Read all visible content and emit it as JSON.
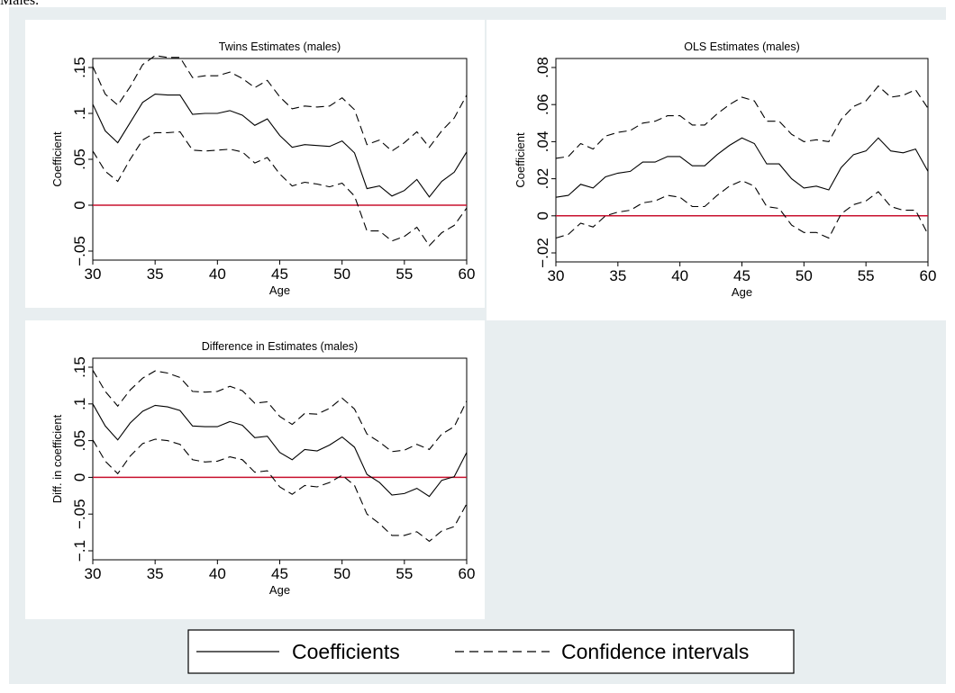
{
  "page": {
    "caption_fragment": "Males.",
    "background_color": "#e8eef0",
    "panel_color": "#ffffff"
  },
  "legend": {
    "solid_label": "Coefficients",
    "dashed_label": "Confidence intervals"
  },
  "chart_data": [
    {
      "type": "line",
      "title": "Twins Estimates (males)",
      "xlabel": "Age",
      "ylabel": "Coefficient",
      "xlim": [
        30,
        60
      ],
      "ylim": [
        -0.05,
        0.15
      ],
      "xticks": [
        30,
        35,
        40,
        45,
        50,
        55,
        60
      ],
      "xtick_labels": [
        "30",
        "35",
        "40",
        "45",
        "50",
        "55",
        "60"
      ],
      "yticks": [
        -0.05,
        0,
        0.05,
        0.1,
        0.15
      ],
      "ytick_labels": [
        "−.05",
        "0",
        ".05",
        ".1",
        ".15"
      ],
      "reference_line": {
        "y": 0,
        "color": "#c8102e"
      },
      "x": [
        30,
        31,
        32,
        33,
        34,
        35,
        36,
        37,
        38,
        39,
        40,
        41,
        42,
        43,
        44,
        45,
        46,
        47,
        48,
        49,
        50,
        51,
        52,
        53,
        54,
        55,
        56,
        57,
        58,
        59,
        60
      ],
      "series": [
        {
          "style": "solid",
          "values": [
            0.11,
            0.081,
            0.068,
            0.09,
            0.112,
            0.121,
            0.12,
            0.12,
            0.099,
            0.1,
            0.1,
            0.103,
            0.098,
            0.087,
            0.094,
            0.076,
            0.063,
            0.066,
            0.065,
            0.064,
            0.07,
            0.057,
            0.018,
            0.021,
            0.01,
            0.016,
            0.028,
            0.009,
            0.026,
            0.036,
            0.058
          ]
        },
        {
          "style": "dashed",
          "values": [
            0.151,
            0.121,
            0.109,
            0.129,
            0.153,
            0.163,
            0.161,
            0.161,
            0.139,
            0.141,
            0.141,
            0.145,
            0.138,
            0.128,
            0.136,
            0.118,
            0.105,
            0.108,
            0.107,
            0.108,
            0.117,
            0.104,
            0.066,
            0.071,
            0.059,
            0.068,
            0.08,
            0.063,
            0.081,
            0.095,
            0.12
          ]
        },
        {
          "style": "dashed",
          "values": [
            0.059,
            0.037,
            0.026,
            0.05,
            0.071,
            0.079,
            0.079,
            0.08,
            0.06,
            0.059,
            0.06,
            0.061,
            0.058,
            0.046,
            0.052,
            0.034,
            0.021,
            0.025,
            0.023,
            0.02,
            0.024,
            0.01,
            -0.028,
            -0.028,
            -0.039,
            -0.034,
            -0.024,
            -0.044,
            -0.03,
            -0.022,
            -0.003
          ]
        }
      ]
    },
    {
      "type": "line",
      "title": "OLS Estimates (males)",
      "xlabel": "Age",
      "ylabel": "Coefficient",
      "xlim": [
        30,
        60
      ],
      "ylim": [
        -0.02,
        0.08
      ],
      "xticks": [
        30,
        35,
        40,
        45,
        50,
        55,
        60
      ],
      "xtick_labels": [
        "30",
        "35",
        "40",
        "45",
        "50",
        "55",
        "60"
      ],
      "yticks": [
        -0.02,
        0,
        0.02,
        0.04,
        0.06,
        0.08
      ],
      "ytick_labels": [
        "−.02",
        "0",
        ".02",
        ".04",
        ".06",
        ".08"
      ],
      "reference_line": {
        "y": 0,
        "color": "#c8102e"
      },
      "x": [
        30,
        31,
        32,
        33,
        34,
        35,
        36,
        37,
        38,
        39,
        40,
        41,
        42,
        43,
        44,
        45,
        46,
        47,
        48,
        49,
        50,
        51,
        52,
        53,
        54,
        55,
        56,
        57,
        58,
        59,
        60
      ],
      "series": [
        {
          "style": "solid",
          "values": [
            0.01,
            0.011,
            0.017,
            0.015,
            0.021,
            0.023,
            0.024,
            0.029,
            0.029,
            0.032,
            0.032,
            0.027,
            0.027,
            0.033,
            0.038,
            0.042,
            0.039,
            0.028,
            0.028,
            0.02,
            0.015,
            0.016,
            0.014,
            0.026,
            0.033,
            0.035,
            0.042,
            0.035,
            0.034,
            0.036,
            0.024
          ]
        },
        {
          "style": "dashed",
          "values": [
            0.031,
            0.032,
            0.039,
            0.036,
            0.043,
            0.045,
            0.046,
            0.05,
            0.051,
            0.054,
            0.054,
            0.049,
            0.049,
            0.055,
            0.06,
            0.064,
            0.062,
            0.051,
            0.051,
            0.044,
            0.04,
            0.041,
            0.04,
            0.052,
            0.059,
            0.062,
            0.07,
            0.064,
            0.065,
            0.068,
            0.058
          ]
        },
        {
          "style": "dashed",
          "values": [
            -0.012,
            -0.01,
            -0.004,
            -0.006,
            0.0,
            0.002,
            0.003,
            0.007,
            0.008,
            0.011,
            0.01,
            0.005,
            0.005,
            0.011,
            0.016,
            0.019,
            0.016,
            0.005,
            0.004,
            -0.005,
            -0.009,
            -0.009,
            -0.012,
            0.001,
            0.006,
            0.008,
            0.013,
            0.005,
            0.003,
            0.003,
            -0.01
          ]
        }
      ]
    },
    {
      "type": "line",
      "title": "Difference in Estimates (males)",
      "xlabel": "Age",
      "ylabel": "Diff. in coefficient",
      "xlim": [
        30,
        60
      ],
      "ylim": [
        -0.1,
        0.15
      ],
      "xticks": [
        30,
        35,
        40,
        45,
        50,
        55,
        60
      ],
      "xtick_labels": [
        "30",
        "35",
        "40",
        "45",
        "50",
        "55",
        "60"
      ],
      "yticks": [
        -0.1,
        -0.05,
        0,
        0.05,
        0.1,
        0.15
      ],
      "ytick_labels": [
        "−.1",
        "−.05",
        "0",
        ".05",
        ".1",
        ".15"
      ],
      "reference_line": {
        "y": 0,
        "color": "#c8102e"
      },
      "x": [
        30,
        31,
        32,
        33,
        34,
        35,
        36,
        37,
        38,
        39,
        40,
        41,
        42,
        43,
        44,
        45,
        46,
        47,
        48,
        49,
        50,
        51,
        52,
        53,
        54,
        55,
        56,
        57,
        58,
        59,
        60
      ],
      "series": [
        {
          "style": "solid",
          "values": [
            0.1,
            0.07,
            0.051,
            0.074,
            0.09,
            0.098,
            0.096,
            0.091,
            0.07,
            0.069,
            0.069,
            0.076,
            0.071,
            0.054,
            0.056,
            0.034,
            0.024,
            0.038,
            0.036,
            0.044,
            0.055,
            0.041,
            0.004,
            -0.007,
            -0.024,
            -0.022,
            -0.015,
            -0.026,
            -0.004,
            0.001,
            0.034
          ]
        },
        {
          "style": "dashed",
          "values": [
            0.146,
            0.117,
            0.097,
            0.119,
            0.135,
            0.145,
            0.142,
            0.136,
            0.117,
            0.116,
            0.117,
            0.124,
            0.118,
            0.101,
            0.103,
            0.083,
            0.072,
            0.087,
            0.086,
            0.094,
            0.108,
            0.093,
            0.059,
            0.048,
            0.035,
            0.037,
            0.045,
            0.038,
            0.059,
            0.069,
            0.104
          ]
        },
        {
          "style": "dashed",
          "values": [
            0.051,
            0.022,
            0.005,
            0.029,
            0.046,
            0.052,
            0.05,
            0.045,
            0.024,
            0.021,
            0.022,
            0.028,
            0.024,
            0.007,
            0.009,
            -0.013,
            -0.023,
            -0.011,
            -0.013,
            -0.007,
            0.003,
            -0.011,
            -0.05,
            -0.063,
            -0.079,
            -0.079,
            -0.074,
            -0.087,
            -0.073,
            -0.067,
            -0.036
          ]
        }
      ]
    }
  ]
}
